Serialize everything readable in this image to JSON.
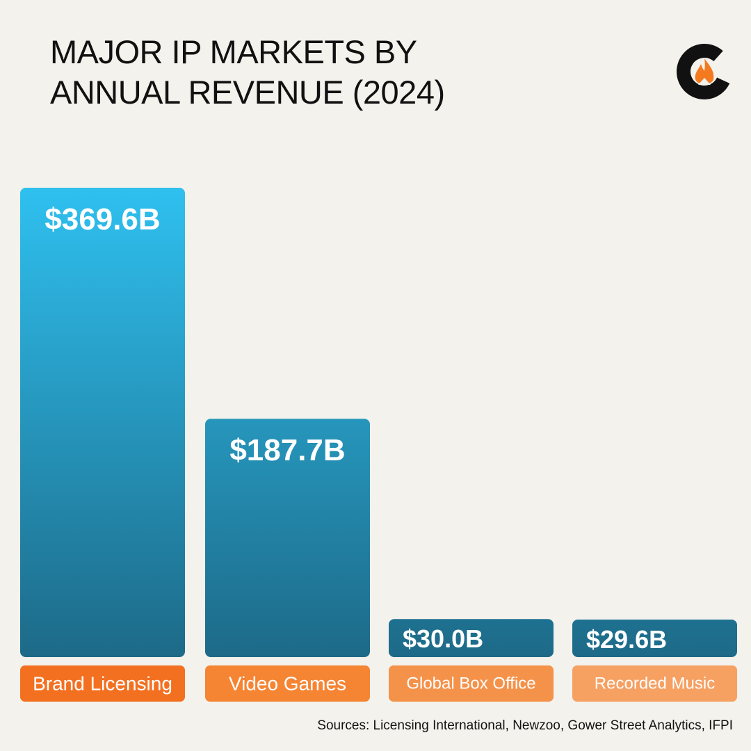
{
  "header": {
    "title_line1": "MAJOR IP MARKETS BY",
    "title_line2": "ANNUAL REVENUE (2024)"
  },
  "logo": {
    "icon": "flame-c-logo-icon",
    "ring_color": "#111111",
    "flame_color": "#f47a20"
  },
  "colors": {
    "background": "#f3f2ec",
    "bar_top": "#2fc0ef",
    "bar_bottom": "#1d6a88",
    "label_colors": [
      "#f37021",
      "#f58433",
      "#f5924a",
      "#f6a062"
    ]
  },
  "chart_data": {
    "type": "bar",
    "title": "MAJOR IP MARKETS BY ANNUAL REVENUE (2024)",
    "categories": [
      "Brand Licensing",
      "Video Games",
      "Global Box Office",
      "Recorded Music"
    ],
    "values": [
      369.6,
      187.7,
      30.0,
      29.6
    ],
    "value_labels": [
      "$369.6B",
      "$187.7B",
      "$30.0B",
      "$29.6B"
    ],
    "unit": "USD billions",
    "xlabel": "",
    "ylabel": "",
    "ylim": [
      0,
      369.6
    ],
    "grid": false,
    "legend": "none"
  },
  "footer": {
    "sources": "Sources: Licensing International, Newzoo, Gower Street Analytics, IFPI"
  }
}
